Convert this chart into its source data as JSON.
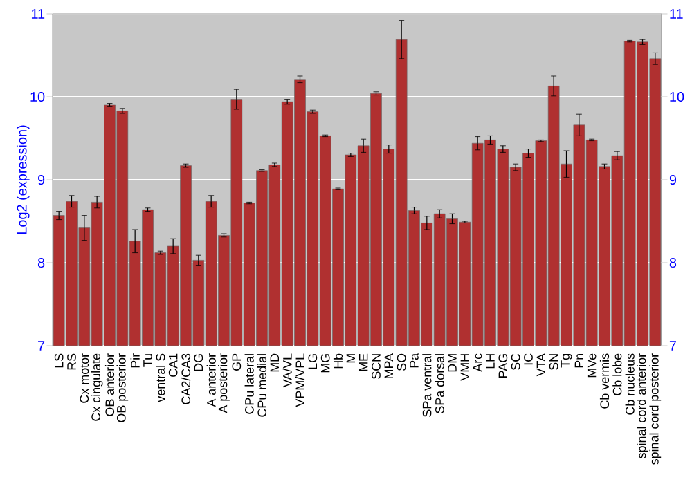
{
  "chart_data": {
    "type": "bar",
    "ylabel": "Log2 (expression)",
    "categories": [
      "LS",
      "RS",
      "Cx motor",
      "Cx cingulate",
      "OB anterior",
      "OB posterior",
      "Pir",
      "Tu",
      "ventral S",
      "CA1",
      "CA2/CA3",
      "DG",
      "A anterior",
      "A posterior",
      "GP",
      "CPu lateral",
      "CPu medial",
      "MD",
      "VA/VL",
      "VPM/VPL",
      "LG",
      "MG",
      "Hb",
      "M",
      "ME",
      "SCN",
      "MPA",
      "SO",
      "Pa",
      "SPa ventral",
      "SPa dorsal",
      "DM",
      "VMH",
      "Arc",
      "LH",
      "PAG",
      "SC",
      "IC",
      "VTA",
      "SN",
      "Tg",
      "Pn",
      "MVe",
      "Cb vermis",
      "Cb lobe",
      "Cb nucleus",
      "spinal cord anterior",
      "spinal cord posterior"
    ],
    "values": [
      8.57,
      8.74,
      8.42,
      8.73,
      9.9,
      9.83,
      8.26,
      8.64,
      8.12,
      8.2,
      9.17,
      8.03,
      8.74,
      8.33,
      9.97,
      8.72,
      9.11,
      9.18,
      9.94,
      10.21,
      9.82,
      9.53,
      8.89,
      9.3,
      9.41,
      10.04,
      9.37,
      10.69,
      8.63,
      8.48,
      8.59,
      8.53,
      8.49,
      9.44,
      9.48,
      9.37,
      9.15,
      9.32,
      9.47,
      10.13,
      9.19,
      9.66,
      9.48,
      9.16,
      9.29,
      10.67,
      10.66,
      10.46
    ],
    "errors": [
      0.05,
      0.07,
      0.15,
      0.07,
      0.02,
      0.03,
      0.14,
      0.02,
      0.02,
      0.09,
      0.02,
      0.06,
      0.07,
      0.02,
      0.12,
      0.01,
      0.01,
      0.02,
      0.03,
      0.04,
      0.02,
      0.01,
      0.01,
      0.02,
      0.08,
      0.02,
      0.05,
      0.23,
      0.04,
      0.08,
      0.05,
      0.06,
      0.01,
      0.08,
      0.05,
      0.04,
      0.04,
      0.05,
      0.01,
      0.12,
      0.16,
      0.13,
      0.01,
      0.03,
      0.05,
      0.01,
      0.03,
      0.07
    ],
    "color": "#b03030",
    "ylim": [
      7,
      11
    ],
    "yticks": [
      7,
      8,
      9,
      10,
      11
    ],
    "y2lim": [
      7,
      11
    ],
    "y2ticks": [
      7,
      8,
      9,
      10,
      11
    ],
    "grid": "y"
  }
}
